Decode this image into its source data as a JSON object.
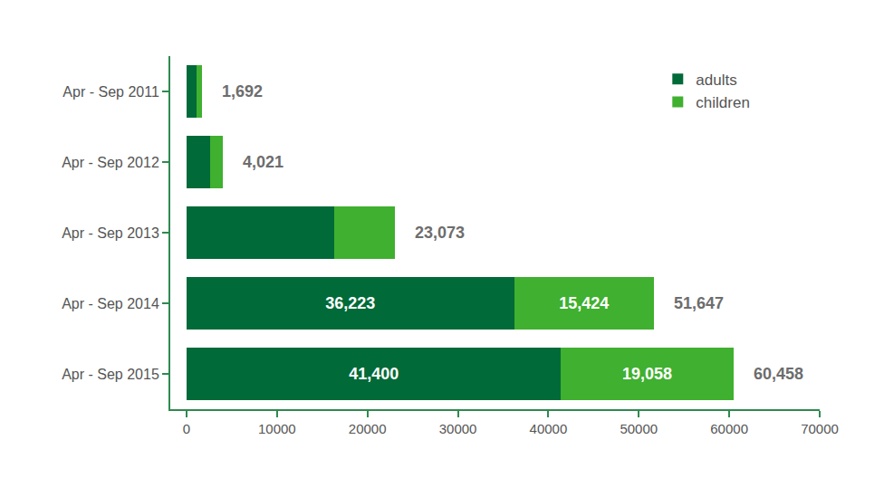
{
  "chart_data": {
    "type": "bar",
    "orientation": "horizontal",
    "stacked": true,
    "data_labels": true,
    "grid": false,
    "legend": "top right",
    "categories": [
      "Apr - Sep 2011",
      "Apr - Sep 2012",
      "Apr - Sep 2013",
      "Apr - Sep 2014",
      "Apr - Sep 2015"
    ],
    "series": [
      {
        "name": "adults",
        "color": "#006a38",
        "values": [
          1100,
          2600,
          16300,
          36223,
          41400
        ],
        "value_labels": [
          null,
          null,
          null,
          "36,223",
          "41,400"
        ]
      },
      {
        "name": "children",
        "color": "#3fb02f",
        "values": [
          592,
          1421,
          6773,
          15424,
          19058
        ],
        "value_labels": [
          null,
          null,
          null,
          "15,424",
          "19,058"
        ]
      }
    ],
    "totals": [
      1692,
      4021,
      23073,
      51647,
      60458
    ],
    "total_labels": [
      "1,692",
      "4,021",
      "23,073",
      "51,647",
      "60,458"
    ],
    "xlim": [
      -1800,
      70000
    ],
    "xticks": [
      0,
      10000,
      20000,
      30000,
      40000,
      50000,
      60000,
      70000
    ]
  }
}
